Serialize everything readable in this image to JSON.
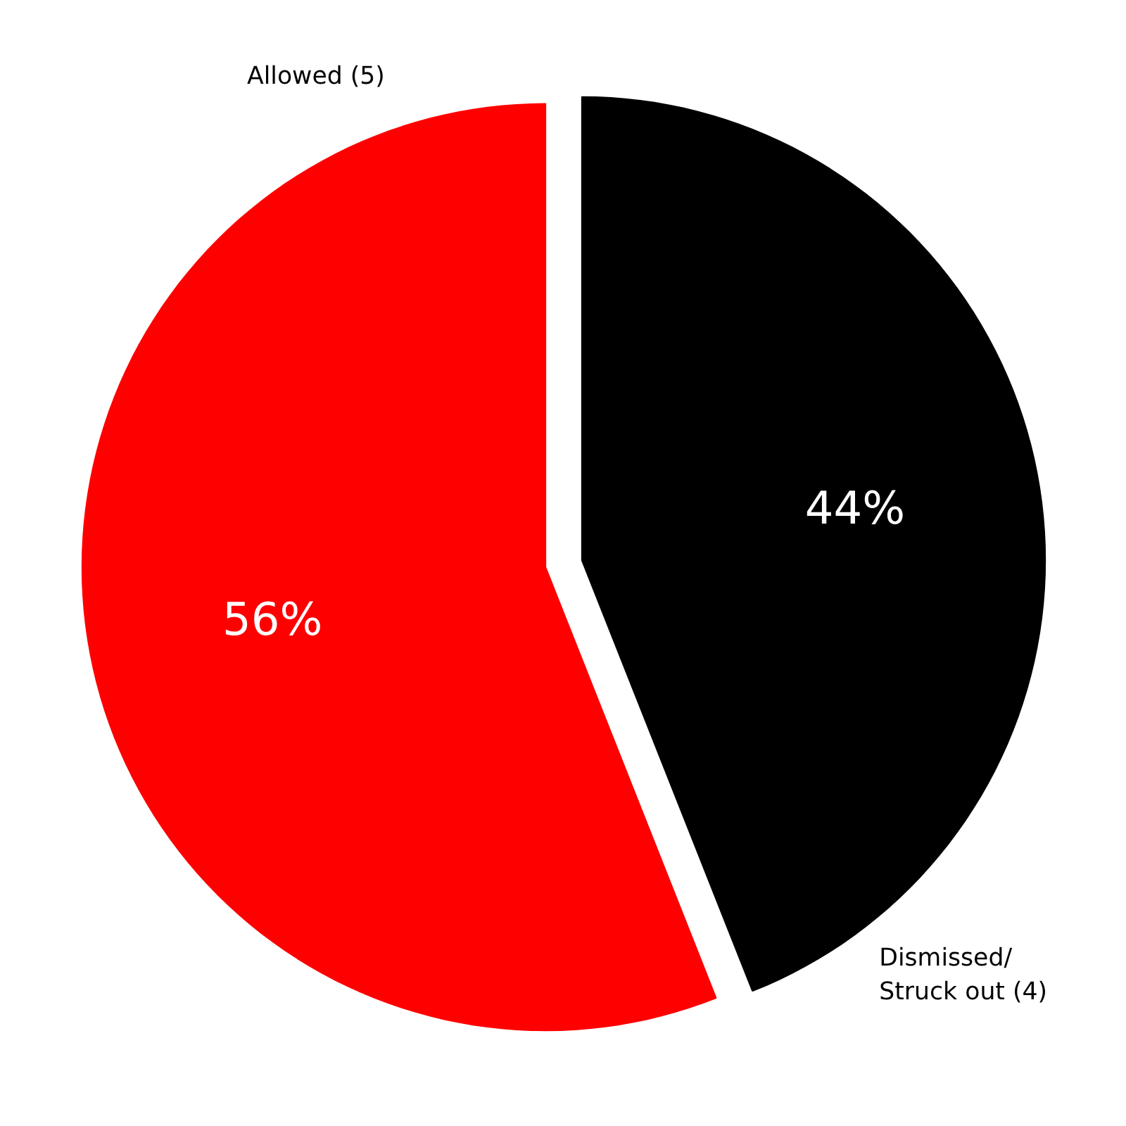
{
  "chart_data": {
    "type": "pie",
    "categories": [
      "Allowed (5)",
      "Dismissed/\nStruck out (4)"
    ],
    "values": [
      56,
      44
    ],
    "colors": [
      "#ff0000",
      "#000000"
    ],
    "value_labels": [
      "56%",
      "44%"
    ]
  }
}
